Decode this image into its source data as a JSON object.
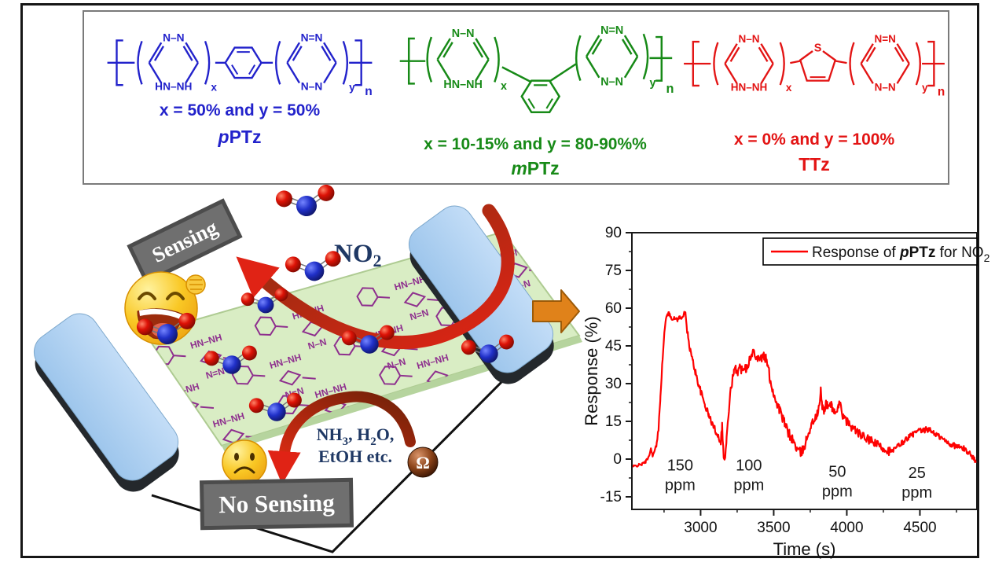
{
  "top_panel": {
    "structures": [
      {
        "id": "pPTz",
        "type": "para",
        "color": "#2222cb",
        "left_ring_top": "N–N",
        "left_ring_bottom": "HN–NH",
        "right_ring_top": "N=N",
        "right_ring_bottom": "N–N",
        "center_atom": "",
        "sub_x": "x",
        "sub_y": "y",
        "sub_n": "n",
        "caption": "x = 50% and y = 50%",
        "name_prefix": "p",
        "name_main": "PTz"
      },
      {
        "id": "mPTz",
        "type": "meta",
        "color": "#178a17",
        "left_ring_top": "N–N",
        "left_ring_bottom": "HN–NH",
        "right_ring_top": "N=N",
        "right_ring_bottom": "N–N",
        "center_atom": "",
        "sub_x": "x",
        "sub_y": "y",
        "sub_n": "n",
        "caption": "x = 10-15% and y = 80-90%%",
        "name_prefix": "m",
        "name_main": "PTz"
      },
      {
        "id": "TTz",
        "type": "thiophene",
        "color": "#e31414",
        "left_ring_top": "N–N",
        "left_ring_bottom": "HN–NH",
        "right_ring_top": "N=N",
        "right_ring_bottom": "N–N",
        "center_atom": "S",
        "sub_x": "x",
        "sub_y": "y",
        "sub_n": "n",
        "caption": "x = 0% and y = 100%",
        "name_prefix": "",
        "name_main": "TTz"
      }
    ]
  },
  "scene": {
    "sensing_label": "Sensing",
    "no_sensing_label": "No Sensing",
    "no2_label": [
      {
        "t": "NO"
      },
      {
        "t": "2",
        "sub": true
      }
    ],
    "interferents_line1": [
      {
        "t": "NH"
      },
      {
        "t": "3",
        "sub": true
      },
      {
        "t": ", H"
      },
      {
        "t": "2",
        "sub": true
      },
      {
        "t": "O,"
      }
    ],
    "interferents_line2": "EtOH etc.",
    "ohm_symbol": "Ω",
    "film_motif_labels": [
      "HN–NH",
      "N=N",
      "N–N"
    ],
    "colors": {
      "film_green": "#d9edc4",
      "polymer_purple": "#8e2f8e",
      "electrode_blue": "#aed3f2",
      "plaque_gray": "#6f6f6f",
      "text_navy": "#1f3864",
      "arrow_red": "#d92a12",
      "arrow_brown": "#8a2f10",
      "block_arrow_orange": "#e0821a",
      "oxygen_red": "#d81408",
      "nitrogen_blue": "#2030c8"
    }
  },
  "chart_data": {
    "type": "line",
    "title": "",
    "xlabel": "Time (s)",
    "ylabel": "Response (%)",
    "xlim": [
      2530,
      4890
    ],
    "ylim": [
      -20,
      90
    ],
    "x_ticks": [
      3000,
      3500,
      4000,
      4500
    ],
    "x_minor_ticks": [
      2750,
      3250,
      3750,
      4250,
      4750
    ],
    "y_ticks": [
      -15,
      0,
      15,
      30,
      45,
      60,
      75,
      90
    ],
    "y_minor_ticks": [
      -7.5,
      7.5,
      22.5,
      37.5,
      52.5,
      67.5,
      82.5
    ],
    "grid": false,
    "legend": {
      "position": "top-right",
      "label_parts": [
        {
          "t": "Response of "
        },
        {
          "t": "p",
          "bi": true
        },
        {
          "t": "PTz",
          "b": true
        },
        {
          "t": " for NO"
        },
        {
          "t": "2",
          "sub": true
        }
      ]
    },
    "series": [
      {
        "name": "Response of pPTz for NO2",
        "color": "#fe0101",
        "points": [
          [
            2535,
            -3
          ],
          [
            2570,
            -2.5
          ],
          [
            2600,
            -2
          ],
          [
            2625,
            -1
          ],
          [
            2645,
            1
          ],
          [
            2660,
            4
          ],
          [
            2672,
            1.5
          ],
          [
            2685,
            3
          ],
          [
            2700,
            6
          ],
          [
            2712,
            12
          ],
          [
            2725,
            25
          ],
          [
            2740,
            40
          ],
          [
            2752,
            50
          ],
          [
            2763,
            55.5
          ],
          [
            2772,
            58
          ],
          [
            2785,
            57.5
          ],
          [
            2800,
            56.5
          ],
          [
            2815,
            55.5
          ],
          [
            2830,
            56
          ],
          [
            2845,
            55.5
          ],
          [
            2858,
            56.5
          ],
          [
            2868,
            55.5
          ],
          [
            2878,
            57
          ],
          [
            2888,
            58.5
          ],
          [
            2896,
            57.5
          ],
          [
            2904,
            53
          ],
          [
            2915,
            48
          ],
          [
            2930,
            43
          ],
          [
            2948,
            38.5
          ],
          [
            2965,
            34.5
          ],
          [
            2985,
            30
          ],
          [
            3005,
            26
          ],
          [
            3030,
            21.5
          ],
          [
            3055,
            17.5
          ],
          [
            3080,
            14
          ],
          [
            3105,
            11
          ],
          [
            3125,
            8.5
          ],
          [
            3138,
            7
          ],
          [
            3147,
            13.5
          ],
          [
            3154,
            5
          ],
          [
            3160,
            -0.5
          ],
          [
            3168,
            1
          ],
          [
            3178,
            8
          ],
          [
            3190,
            17
          ],
          [
            3202,
            25
          ],
          [
            3215,
            31
          ],
          [
            3228,
            34
          ],
          [
            3242,
            36
          ],
          [
            3256,
            35
          ],
          [
            3270,
            36.5
          ],
          [
            3284,
            35.5
          ],
          [
            3298,
            37.5
          ],
          [
            3312,
            36
          ],
          [
            3326,
            38.5
          ],
          [
            3340,
            40
          ],
          [
            3354,
            41.5
          ],
          [
            3366,
            43.5
          ],
          [
            3378,
            41.5
          ],
          [
            3392,
            40
          ],
          [
            3406,
            41
          ],
          [
            3420,
            40
          ],
          [
            3434,
            41
          ],
          [
            3448,
            39.5
          ],
          [
            3460,
            37
          ],
          [
            3475,
            32
          ],
          [
            3490,
            28
          ],
          [
            3505,
            25
          ],
          [
            3520,
            22.5
          ],
          [
            3538,
            20
          ],
          [
            3556,
            17
          ],
          [
            3575,
            14
          ],
          [
            3595,
            11
          ],
          [
            3615,
            9
          ],
          [
            3635,
            7
          ],
          [
            3655,
            4.5
          ],
          [
            3672,
            3
          ],
          [
            3688,
            2.5
          ],
          [
            3705,
            4
          ],
          [
            3722,
            7.5
          ],
          [
            3738,
            10.5
          ],
          [
            3754,
            13
          ],
          [
            3770,
            15
          ],
          [
            3786,
            16.5
          ],
          [
            3800,
            18
          ],
          [
            3812,
            21
          ],
          [
            3822,
            27
          ],
          [
            3832,
            21
          ],
          [
            3845,
            19.5
          ],
          [
            3858,
            22
          ],
          [
            3872,
            20.5
          ],
          [
            3886,
            22.5
          ],
          [
            3900,
            20.5
          ],
          [
            3915,
            19
          ],
          [
            3930,
            17.5
          ],
          [
            3944,
            20.5
          ],
          [
            3956,
            24
          ],
          [
            3968,
            18
          ],
          [
            3982,
            16
          ],
          [
            4000,
            15
          ],
          [
            4020,
            13.5
          ],
          [
            4040,
            12.5
          ],
          [
            4060,
            11.5
          ],
          [
            4085,
            10
          ],
          [
            4110,
            9
          ],
          [
            4140,
            8
          ],
          [
            4170,
            7
          ],
          [
            4200,
            6
          ],
          [
            4230,
            5
          ],
          [
            4260,
            4
          ],
          [
            4290,
            3.2
          ],
          [
            4310,
            3
          ],
          [
            4330,
            4
          ],
          [
            4355,
            5.5
          ],
          [
            4380,
            6.5
          ],
          [
            4405,
            8
          ],
          [
            4430,
            9
          ],
          [
            4455,
            10
          ],
          [
            4480,
            10.8
          ],
          [
            4505,
            11.3
          ],
          [
            4525,
            11
          ],
          [
            4545,
            12
          ],
          [
            4565,
            11.5
          ],
          [
            4585,
            11
          ],
          [
            4605,
            10
          ],
          [
            4630,
            9
          ],
          [
            4655,
            8
          ],
          [
            4680,
            7
          ],
          [
            4705,
            6
          ],
          [
            4730,
            5.5
          ],
          [
            4755,
            5
          ],
          [
            4780,
            4.5
          ],
          [
            4805,
            4
          ],
          [
            4825,
            3
          ],
          [
            4845,
            2
          ],
          [
            4860,
            1
          ],
          [
            4872,
            0
          ],
          [
            4882,
            -1.5
          ]
        ]
      }
    ],
    "annotations": [
      {
        "line1": "150",
        "line2": "ppm",
        "x": 2860,
        "y": -4.5
      },
      {
        "line1": "100",
        "line2": "ppm",
        "x": 3330,
        "y": -4.5
      },
      {
        "line1": "50",
        "line2": "ppm",
        "x": 3935,
        "y": -7
      },
      {
        "line1": "25",
        "line2": "ppm",
        "x": 4480,
        "y": -7.5
      }
    ]
  }
}
